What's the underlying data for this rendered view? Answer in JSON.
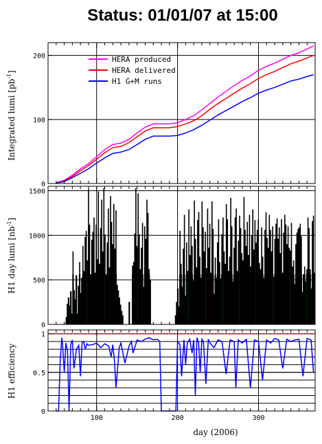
{
  "title": "Status: 01/01/07 at 15:00",
  "xlabel": "day (2006)",
  "colors": {
    "produced": "#ff00ff",
    "delivered": "#ff0000",
    "h1runs": "#0000ff",
    "fill": "#00ffff",
    "bars": "#000000",
    "reference": "#ff0000"
  },
  "chart_data": [
    {
      "type": "line",
      "panel": "integrated",
      "ylabel_main": "Integrated lumi [pb",
      "ylabel_sup": "-1",
      "ylabel_end": "]",
      "xlim": [
        40,
        370
      ],
      "ylim": [
        0,
        220
      ],
      "xticks": [
        100,
        200,
        300
      ],
      "yticks": [
        0,
        100,
        200
      ],
      "ytick_labels": [
        "0",
        "100",
        "200"
      ],
      "legend_position": "top-left",
      "x": [
        50,
        60,
        70,
        80,
        90,
        100,
        110,
        120,
        130,
        140,
        150,
        160,
        170,
        180,
        190,
        200,
        210,
        220,
        230,
        240,
        250,
        260,
        270,
        280,
        290,
        300,
        310,
        320,
        330,
        340,
        350,
        360,
        368
      ],
      "series": [
        {
          "name": "HERA produced",
          "color_key": "produced",
          "values": [
            1,
            5,
            13,
            23,
            31,
            42,
            53,
            61,
            63,
            69,
            79,
            88,
            93,
            93,
            93,
            95,
            100,
            106,
            115,
            125,
            135,
            144,
            153,
            161,
            168,
            177,
            183,
            188,
            194,
            200,
            204,
            210,
            215
          ]
        },
        {
          "name": "HERA delivered",
          "color_key": "delivered",
          "values": [
            1,
            4,
            11,
            20,
            28,
            38,
            48,
            56,
            58,
            64,
            73,
            82,
            87,
            87,
            87,
            89,
            93,
            98,
            106,
            116,
            125,
            133,
            141,
            149,
            156,
            164,
            170,
            175,
            181,
            187,
            191,
            196,
            200
          ]
        },
        {
          "name": "H1 G+M runs",
          "color_key": "h1runs",
          "values": [
            1,
            3,
            9,
            16,
            23,
            32,
            40,
            47,
            49,
            53,
            61,
            69,
            74,
            74,
            74,
            75,
            79,
            84,
            91,
            99,
            107,
            114,
            121,
            128,
            134,
            141,
            146,
            150,
            155,
            160,
            163,
            167,
            170
          ]
        }
      ]
    },
    {
      "type": "bar",
      "panel": "daily",
      "ylabel_main": "H1 day lumi [nb",
      "ylabel_sup": "-1",
      "ylabel_end": "]",
      "xlim": [
        40,
        370
      ],
      "ylim": [
        0,
        1550
      ],
      "xticks": [
        100,
        200,
        300
      ],
      "yticks": [
        0,
        500,
        1000,
        1500
      ],
      "ytick_labels": [
        "0",
        "500",
        "1000",
        "1500"
      ],
      "series": [
        {
          "name": "",
          "color_key": "bars",
          "values": [
            0,
            0,
            0,
            0,
            0,
            0,
            0,
            0,
            0,
            0,
            0,
            80,
            230,
            300,
            210,
            370,
            120,
            820,
            380,
            280,
            550,
            120,
            430,
            700,
            350,
            520,
            880,
            600,
            980,
            1050,
            720,
            1520,
            1120,
            560,
            950,
            1040,
            1200,
            580,
            1120,
            730,
            1490,
            680,
            1080,
            1400,
            820,
            1530,
            1010,
            560,
            920,
            1300,
            640,
            1440,
            1150,
            900,
            1350,
            850,
            1280,
            440,
            380,
            300,
            220,
            150,
            100,
            0,
            0,
            0,
            0,
            0,
            250,
            0,
            0,
            660,
            700,
            1020,
            1530,
            880,
            1470,
            1010,
            620,
            860,
            1140,
            420,
            1100,
            960,
            1400,
            1250,
            620,
            500,
            0,
            0,
            0,
            0,
            0,
            0,
            0,
            0,
            0,
            0,
            0,
            0,
            0,
            0,
            0,
            0,
            0,
            0,
            0,
            0,
            0,
            0,
            100,
            250,
            400,
            200,
            1050,
            680,
            420,
            850,
            1230,
            320,
            920,
            600,
            1290,
            780,
            1100,
            880,
            490,
            1390,
            960,
            640,
            1170,
            1260,
            760,
            520,
            1380,
            1090,
            820,
            1040,
            630,
            1300,
            860,
            1130,
            580,
            1380,
            1070,
            340,
            750,
            520,
            920,
            1180,
            700,
            510,
            1010,
            1200,
            820,
            680,
            1350,
            1180,
            600,
            760,
            1420,
            1100,
            480,
            860,
            1200,
            1300,
            600,
            940,
            1220,
            1080,
            800,
            720,
            1430,
            1060,
            880,
            1150,
            780,
            1230,
            650,
            1000,
            1290,
            840,
            1170,
            920,
            1060,
            1180,
            690,
            620,
            1090,
            760,
            520,
            1060,
            1260,
            970,
            860,
            1230,
            1060,
            820,
            1100,
            530,
            960,
            1130,
            1190,
            960,
            1090,
            800,
            1180,
            580,
            1030,
            1230,
            1120,
            900,
            1100,
            860,
            830,
            1140,
            650,
            720,
            450,
            900,
            1030,
            1070,
            1090,
            1130,
            990,
            360,
            560,
            650,
            480,
            620,
            1200,
            1080,
            620,
            400,
            1160,
            1220,
            580
          ]
        }
      ]
    },
    {
      "type": "line",
      "panel": "efficiency",
      "ylabel_main": "H1 efficiency",
      "xlim": [
        40,
        370
      ],
      "ylim": [
        0,
        1.05
      ],
      "xticks": [
        100,
        200,
        300
      ],
      "yticks": [
        0,
        0.5,
        1
      ],
      "ytick_labels": [
        "0",
        "0.5",
        "1"
      ],
      "reference_line": 1,
      "x": [
        50,
        53,
        55,
        57,
        58,
        60,
        62,
        64,
        66,
        68,
        70,
        72,
        75,
        78,
        80,
        82,
        84,
        86,
        88,
        90,
        95,
        100,
        105,
        110,
        115,
        118,
        120,
        122,
        124,
        128,
        130,
        135,
        140,
        143,
        145,
        150,
        155,
        160,
        165,
        170,
        175,
        178,
        180,
        185,
        190,
        195,
        198,
        200,
        203,
        205,
        208,
        210,
        212,
        215,
        218,
        220,
        222,
        224,
        226,
        228,
        230,
        232,
        235,
        238,
        240,
        245,
        250,
        255,
        260,
        265,
        270,
        272,
        275,
        280,
        285,
        290,
        295,
        300,
        305,
        310,
        315,
        320,
        325,
        330,
        335,
        340,
        345,
        350,
        355,
        360,
        365,
        368
      ],
      "series": [
        {
          "name": "",
          "color_key": "h1runs",
          "values": [
            0,
            0,
            0.65,
            0.95,
            0.85,
            0.5,
            0.88,
            0.78,
            0,
            0.86,
            0.92,
            0.55,
            0.8,
            0.85,
            0.45,
            0.88,
            0.9,
            0.8,
            0.87,
            0.85,
            0.86,
            0.88,
            0.82,
            0.87,
            0.84,
            0.7,
            0.86,
            0.65,
            0.3,
            0.82,
            0.88,
            0.62,
            0.84,
            0.9,
            0.75,
            0.92,
            0.9,
            0.93,
            0.95,
            0.92,
            0.93,
            0.9,
            0,
            0,
            0,
            0,
            0,
            0.9,
            0.86,
            0.45,
            0.92,
            0.6,
            0.88,
            0.93,
            0.75,
            0.92,
            0.2,
            0.95,
            0.88,
            0.5,
            0.93,
            0.9,
            0.35,
            0.93,
            0.88,
            0.82,
            0.92,
            0.9,
            0.48,
            0.92,
            0.9,
            0.3,
            0.92,
            0.88,
            0.93,
            0.3,
            0.92,
            0.9,
            0.4,
            0.92,
            0.88,
            0.94,
            0.92,
            0.55,
            0.93,
            0.9,
            0.92,
            0.93,
            0.45,
            0.94,
            0.92,
            0.5
          ]
        }
      ]
    }
  ]
}
